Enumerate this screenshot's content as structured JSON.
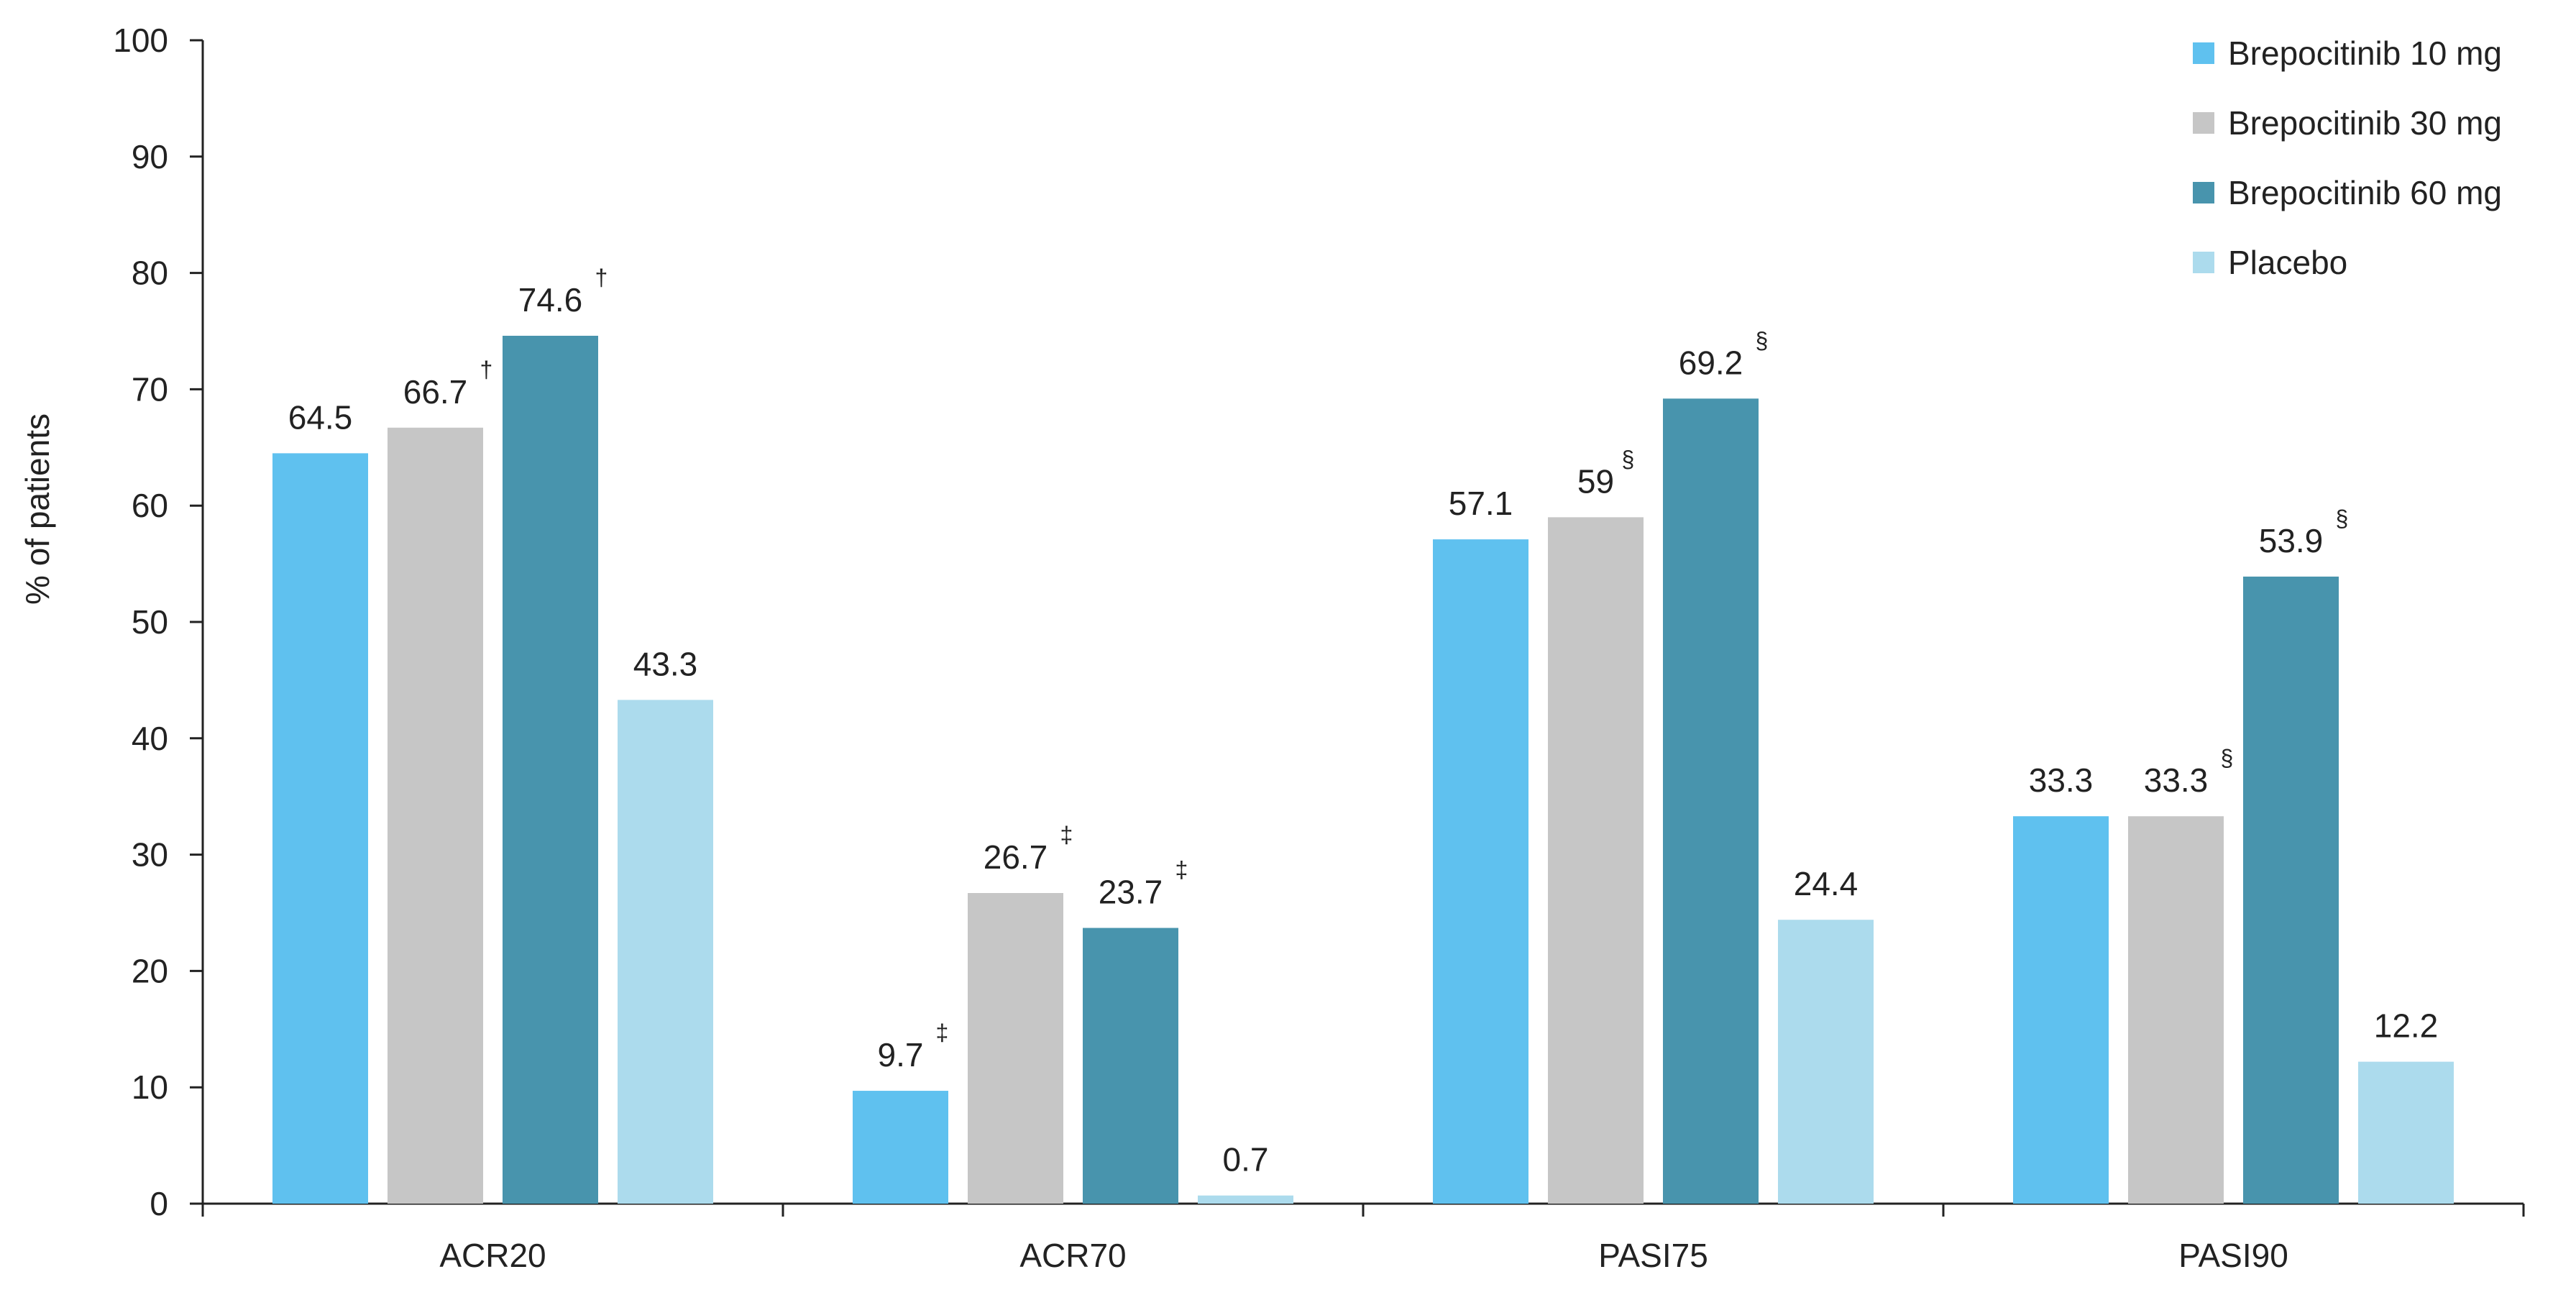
{
  "chart_data": {
    "type": "bar",
    "title": "",
    "xlabel": "",
    "ylabel": "% of patients",
    "ylim": [
      0,
      100
    ],
    "yticks": [
      0,
      10,
      20,
      30,
      40,
      50,
      60,
      70,
      80,
      90,
      100
    ],
    "categories": [
      "ACR20",
      "ACR70",
      "PASI75",
      "PASI90"
    ],
    "grid": false,
    "legend_position": "top-right",
    "series": [
      {
        "name": "Brepocitinib 10 mg",
        "color": "#5fc1ef",
        "values": [
          64.5,
          9.7,
          57.1,
          33.3
        ],
        "labels": [
          "64.5",
          "9.7",
          "57.1",
          "33.3"
        ],
        "marks": [
          "",
          "‡",
          "",
          ""
        ]
      },
      {
        "name": "Brepocitinib 30 mg",
        "color": "#c6c6c6",
        "values": [
          66.7,
          26.7,
          59,
          33.3
        ],
        "labels": [
          "66.7",
          "26.7",
          "59",
          "33.3"
        ],
        "marks": [
          "†",
          "‡",
          "§",
          "§"
        ]
      },
      {
        "name": "Brepocitinib 60 mg",
        "color": "#4894ad",
        "values": [
          74.6,
          23.7,
          69.2,
          53.9
        ],
        "labels": [
          "74.6",
          "23.7",
          "69.2",
          "53.9"
        ],
        "marks": [
          "†",
          "‡",
          "§",
          "§"
        ]
      },
      {
        "name": "Placebo",
        "color": "#acdbed",
        "values": [
          43.3,
          0.7,
          24.4,
          12.2
        ],
        "labels": [
          "43.3",
          "0.7",
          "24.4",
          "12.2"
        ],
        "marks": [
          "",
          "",
          "",
          ""
        ]
      }
    ]
  }
}
